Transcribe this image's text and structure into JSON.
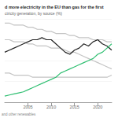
{
  "chart_data": {
    "type": "line",
    "title": "d more electricity in the EU than gas for the first",
    "subtitle": "ctricity generation, by source (%)",
    "note": "and other renewables",
    "x": [
      2000,
      2001,
      2002,
      2003,
      2004,
      2005,
      2006,
      2007,
      2008,
      2009,
      2010,
      2011,
      2012,
      2013,
      2014,
      2015,
      2016,
      2017,
      2018,
      2019,
      2020,
      2021,
      2022,
      2023
    ],
    "xlim": [
      2000,
      2023
    ],
    "xticks": [
      2005,
      2010,
      2015,
      2020
    ],
    "ylim": [
      0,
      40
    ],
    "yticks": [
      0,
      10,
      20,
      30,
      40
    ],
    "grid": true,
    "tick_labels": "x",
    "series": [
      {
        "color": "#c4c4c4",
        "values": [
          38,
          38,
          37,
          37,
          37,
          36,
          36,
          35,
          35,
          34,
          34,
          33,
          33,
          33,
          32,
          32,
          31,
          31,
          31,
          30,
          30,
          30,
          29,
          29
        ]
      },
      {
        "color": "#c4c4c4",
        "values": [
          30,
          30,
          29,
          29,
          29,
          28,
          28,
          27,
          27,
          27,
          26,
          26,
          26,
          25,
          24,
          24,
          23,
          22,
          21,
          20,
          19,
          18,
          17,
          16
        ]
      },
      {
        "color": "#c4c4c4",
        "values": [
          14,
          14,
          13,
          13,
          13,
          13,
          12,
          12,
          12,
          12,
          12,
          12,
          12,
          12,
          12,
          12,
          12,
          12,
          12,
          12,
          12,
          12,
          12,
          13
        ]
      },
      {
        "color": "#222222",
        "values": [
          24,
          25,
          26,
          27,
          28,
          29,
          30,
          30,
          31,
          30,
          30,
          28,
          26,
          24,
          23,
          25,
          26,
          28,
          27,
          29,
          30,
          28,
          27,
          25
        ]
      },
      {
        "color": "#2fbf71",
        "values": [
          3,
          3.5,
          4,
          4.5,
          5,
          6,
          7,
          8,
          9,
          10,
          11,
          12,
          14,
          15,
          16,
          17,
          18,
          19,
          20,
          21,
          23,
          24,
          26,
          28
        ]
      }
    ]
  }
}
